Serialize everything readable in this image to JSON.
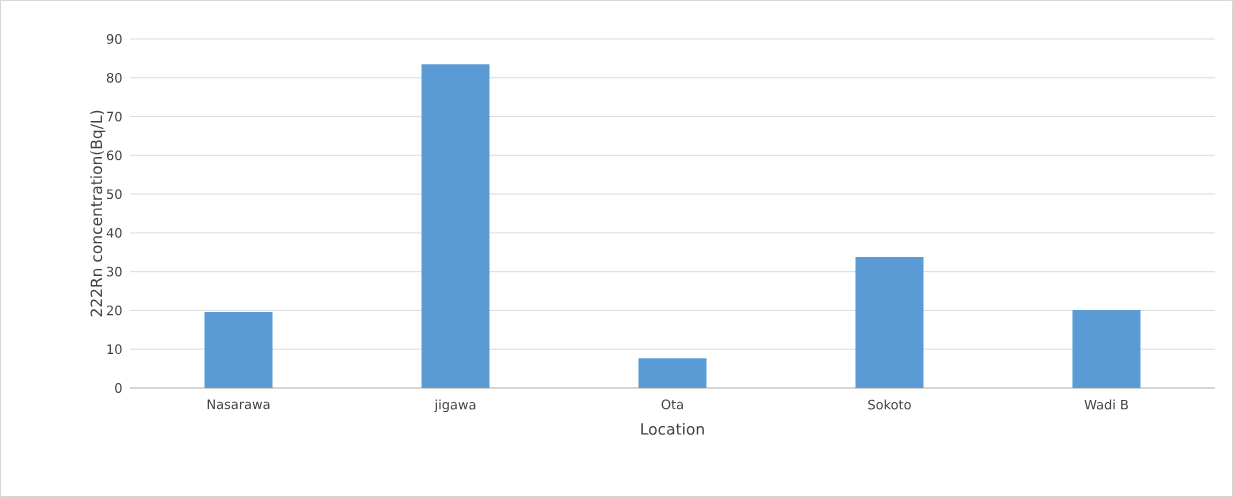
{
  "chart_data": {
    "type": "bar",
    "xlabel": "Location",
    "ylabel": "222Rn concentration(Bq/L)",
    "categories": [
      "Nasarawa",
      "jigawa",
      "Ota",
      "Sokoto",
      "Wadi B"
    ],
    "values": [
      19.6,
      83.5,
      7.7,
      33.8,
      20.1
    ],
    "color": "#5b9bd5",
    "ylim": [
      0,
      90
    ],
    "yticks": [
      0,
      10,
      20,
      30,
      40,
      50,
      60,
      70,
      80,
      90
    ],
    "grid": "y"
  }
}
